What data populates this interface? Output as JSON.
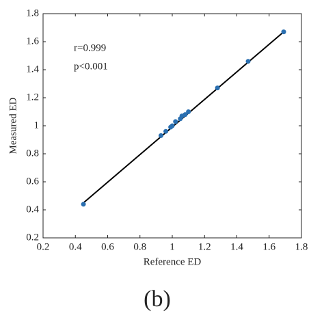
{
  "chart_data": {
    "type": "scatter",
    "x_label": "Reference ED",
    "y_label": "Measured ED",
    "annotations": [
      "r=0.999",
      "p<0.001"
    ],
    "caption": "(b)",
    "xlim": [
      0.2,
      1.8
    ],
    "ylim": [
      0.2,
      1.8
    ],
    "xticks": [
      0.2,
      0.4,
      0.6,
      0.8,
      1,
      1.2,
      1.4,
      1.6,
      1.8
    ],
    "yticks": [
      0.2,
      0.4,
      0.6,
      0.8,
      1,
      1.2,
      1.4,
      1.6,
      1.8
    ],
    "grid": false,
    "points": {
      "color": "#2a6fb0",
      "x": [
        0.45,
        0.93,
        0.96,
        0.99,
        1.0,
        1.02,
        1.05,
        1.06,
        1.08,
        1.1,
        1.28,
        1.47,
        1.69
      ],
      "y": [
        0.44,
        0.93,
        0.96,
        0.99,
        1.0,
        1.03,
        1.05,
        1.07,
        1.08,
        1.1,
        1.27,
        1.46,
        1.67
      ]
    },
    "fit_line": {
      "color": "#000000",
      "x": [
        0.45,
        1.69
      ],
      "y": [
        0.45,
        1.67
      ]
    }
  }
}
